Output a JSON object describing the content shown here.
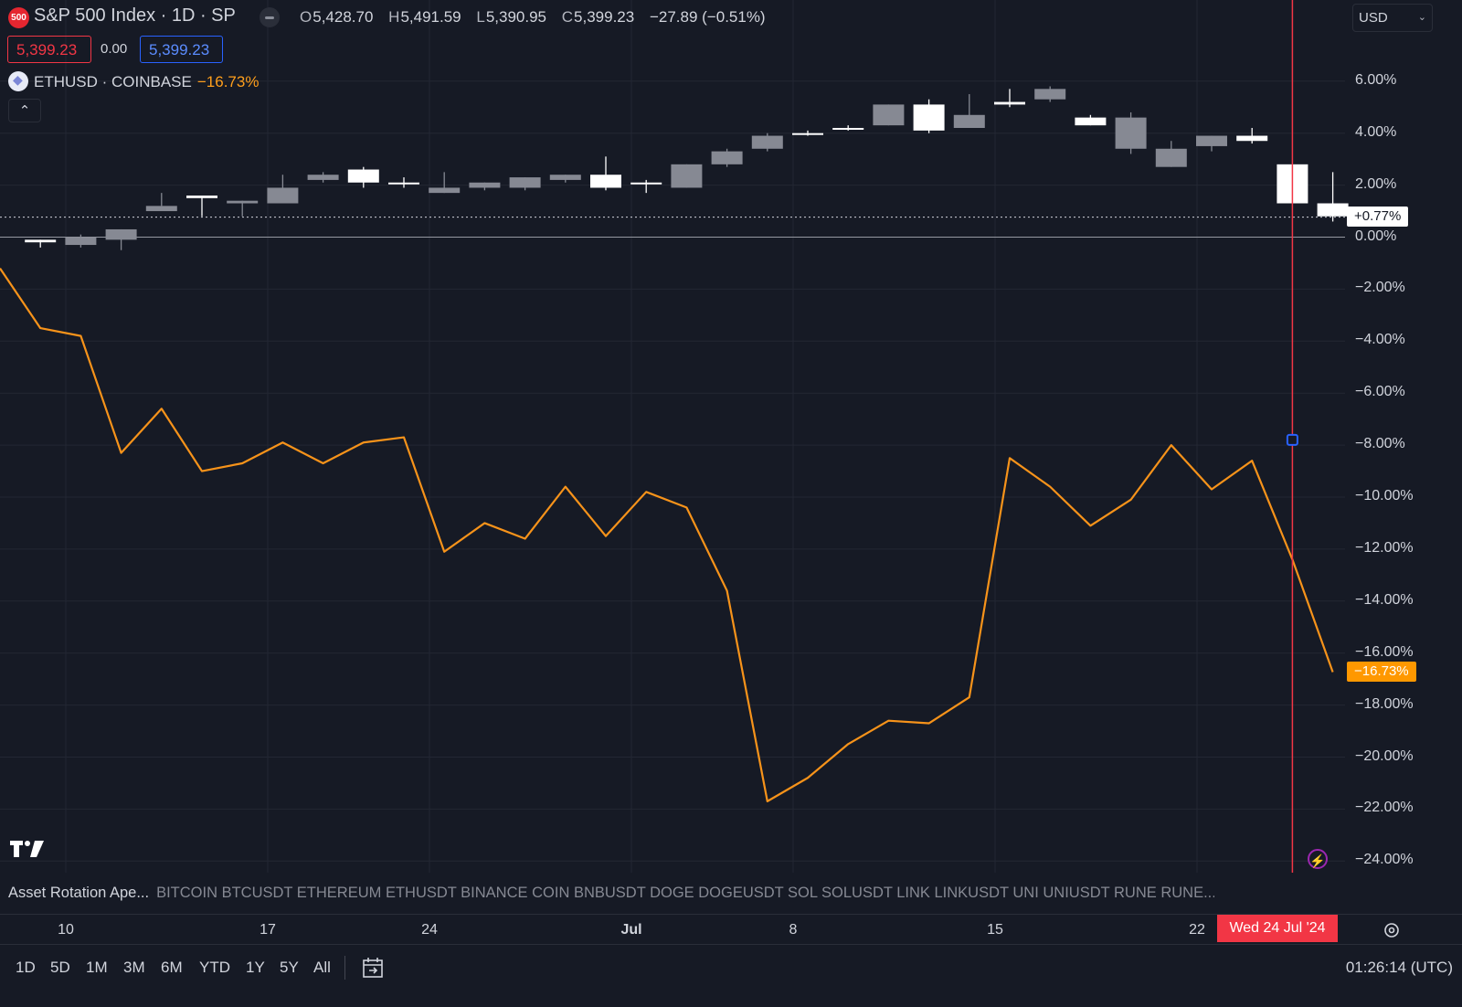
{
  "header": {
    "badge": "500",
    "title": "S&P 500 Index · 1D · SP",
    "ohlc": {
      "o_label": "O",
      "o": "5,428.70",
      "h_label": "H",
      "h": "5,491.59",
      "l_label": "L",
      "l": "5,390.95",
      "c_label": "C",
      "c": "5,399.23",
      "change": "−27.89 (−0.51%)"
    },
    "bid": "5,399.23",
    "spread": "0.00",
    "ask": "5,399.23"
  },
  "compare": {
    "symbol": "ETHUSD · COINBASE",
    "change": "−16.73%"
  },
  "currency": "USD",
  "collapse_icon": "chevron-up-icon",
  "price_tags": {
    "sp": "+0.77%",
    "eth": "−16.73%"
  },
  "strategy": {
    "name": "Asset Rotation Ape...",
    "desc": "BITCOIN BTCUSDT ETHEREUM ETHUSDT BINANCE COIN BNBUSDT DOGE DOGEUSDT SOL SOLUSDT LINK LINKUSDT UNI UNIUSDT RUNE RUNE..."
  },
  "time_axis": {
    "ticks": [
      "10",
      "17",
      "24",
      "Jul",
      "8",
      "15",
      "22"
    ],
    "crosshair_date": "Wed 24 Jul '24"
  },
  "ranges": [
    "1D",
    "5D",
    "1M",
    "3M",
    "6M",
    "YTD",
    "1Y",
    "5Y",
    "All"
  ],
  "clock": "01:26:14 (UTC)",
  "colors": {
    "background": "#161a25",
    "eth_line": "#f7931a",
    "sp_up": "#ffffff",
    "sp_down": "#868993",
    "crosshair": "#f23645"
  },
  "chart_data": {
    "type": "line",
    "y_unit": "%",
    "ylim": [
      -24,
      6.8
    ],
    "y_ticks": [
      "6.00%",
      "4.00%",
      "2.00%",
      "0.00%",
      "−2.00%",
      "−4.00%",
      "−6.00%",
      "−8.00%",
      "−10.00%",
      "−12.00%",
      "−14.00%",
      "−16.00%",
      "−18.00%",
      "−20.00%",
      "−22.00%",
      "−24.00%"
    ],
    "x": [
      "Jun 6",
      "Jun 7",
      "Jun 10",
      "Jun 11",
      "Jun 12",
      "Jun 13",
      "Jun 14",
      "Jun 17",
      "Jun 18",
      "Jun 20",
      "Jun 21",
      "Jun 24",
      "Jun 25",
      "Jun 26",
      "Jun 27",
      "Jun 28",
      "Jul 1",
      "Jul 2",
      "Jul 3",
      "Jul 5",
      "Jul 8",
      "Jul 9",
      "Jul 10",
      "Jul 11",
      "Jul 12",
      "Jul 15",
      "Jul 16",
      "Jul 17",
      "Jul 18",
      "Jul 19",
      "Jul 22",
      "Jul 23",
      "Jul 24",
      "Jul 25"
    ],
    "series": [
      {
        "name": "S&P 500 Index",
        "kind": "candlestick",
        "ohlc": [
          [
            -0.2,
            -0.1,
            -0.4,
            -0.1
          ],
          [
            0,
            0.1,
            -0.4,
            -0.3
          ],
          [
            0.3,
            0.3,
            -0.5,
            -0.1
          ],
          [
            1.2,
            1.7,
            1.2,
            1.0
          ],
          [
            1.5,
            1.6,
            0.8,
            1.6
          ],
          [
            1.4,
            1.4,
            0.8,
            1.3
          ],
          [
            1.9,
            2.4,
            1.3,
            1.3
          ],
          [
            2.4,
            2.5,
            2.1,
            2.2
          ],
          [
            2.1,
            2.7,
            1.9,
            2.6
          ],
          [
            2.1,
            2.3,
            1.9,
            2.1
          ],
          [
            1.9,
            2.5,
            1.7,
            1.7
          ],
          [
            2.1,
            2.1,
            1.8,
            1.9
          ],
          [
            2.3,
            2.3,
            1.8,
            1.9
          ],
          [
            2.4,
            2.4,
            2.1,
            2.2
          ],
          [
            1.9,
            3.1,
            1.8,
            2.4
          ],
          [
            2.1,
            2.2,
            1.7,
            2.1
          ],
          [
            2.8,
            2.8,
            1.9,
            1.9
          ],
          [
            3.3,
            3.4,
            2.7,
            2.8
          ],
          [
            3.9,
            4.0,
            3.3,
            3.4
          ],
          [
            4.0,
            4.1,
            3.9,
            4.0
          ],
          [
            4.2,
            4.3,
            4.1,
            4.2
          ],
          [
            5.1,
            5.1,
            4.3,
            4.3
          ],
          [
            4.1,
            5.3,
            4.0,
            5.1
          ],
          [
            4.7,
            5.5,
            4.2,
            4.2
          ],
          [
            5.1,
            5.7,
            5.0,
            5.2
          ],
          [
            5.7,
            5.8,
            5.2,
            5.3
          ],
          [
            4.3,
            4.7,
            4.3,
            4.6
          ],
          [
            4.6,
            4.8,
            3.2,
            3.4
          ],
          [
            3.4,
            3.7,
            2.7,
            2.7
          ],
          [
            3.9,
            3.9,
            3.3,
            3.5
          ],
          [
            3.7,
            4.2,
            3.6,
            3.9
          ],
          [
            1.3,
            2.8,
            1.3,
            2.8
          ],
          [
            0.8,
            2.5,
            0.6,
            1.3
          ]
        ],
        "last": 0.77
      },
      {
        "name": "ETHUSD · COINBASE",
        "kind": "line",
        "values": [
          -1.2,
          -3.5,
          -3.8,
          -8.3,
          -6.6,
          -9.0,
          -8.7,
          -7.9,
          -8.7,
          -7.9,
          -7.7,
          -12.1,
          -11.0,
          -11.6,
          -9.6,
          -11.5,
          -9.8,
          -10.4,
          -13.6,
          -21.7,
          -20.8,
          -19.5,
          -18.6,
          -18.7,
          -17.7,
          -8.5,
          -9.6,
          -11.1,
          -10.1,
          -8.0,
          -9.7,
          -8.6,
          -12.4,
          -16.73
        ]
      }
    ],
    "crosshair_x": "Jul 24",
    "grid": true
  }
}
